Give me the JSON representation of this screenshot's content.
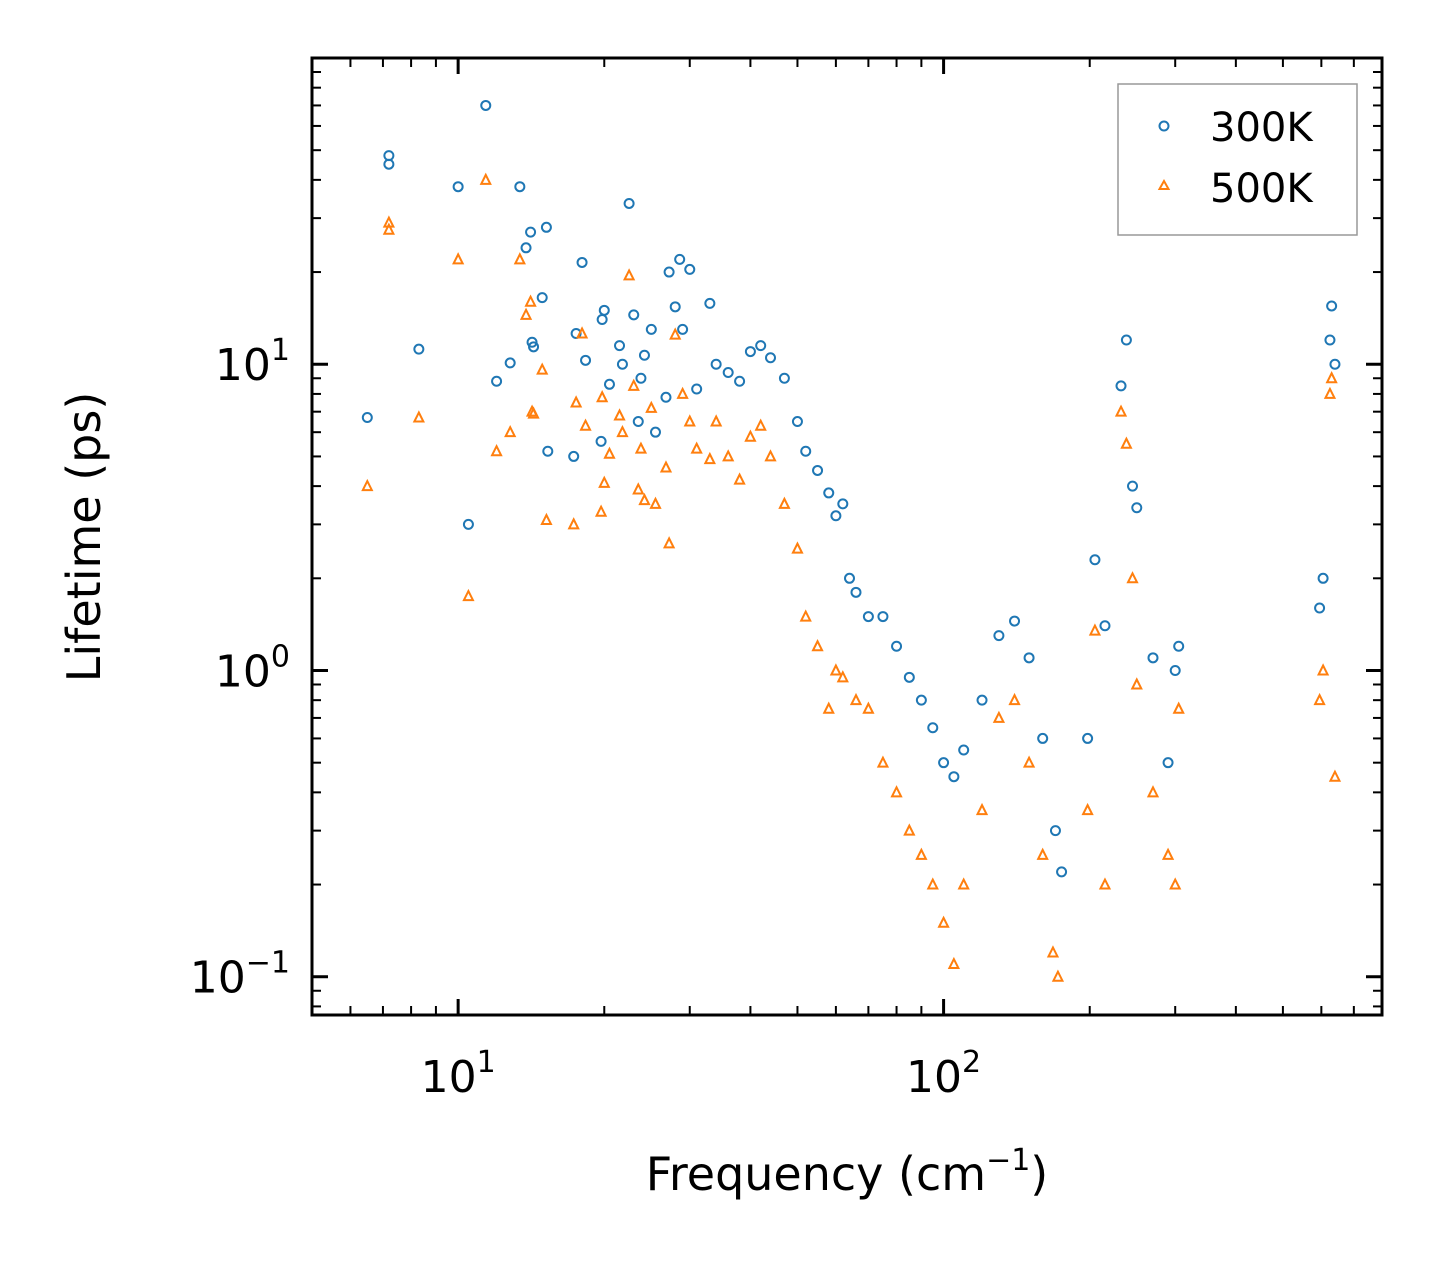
{
  "chart_data": {
    "type": "scatter",
    "xscale": "log",
    "yscale": "log",
    "xlabel": "Frequency (cm",
    "xlabel_sup": "−1",
    "xlabel_end": ")",
    "ylabel": "Lifetime (ps)",
    "xlim": [
      5,
      800
    ],
    "ylim": [
      0.075,
      100
    ],
    "xticks": [
      {
        "value": 10,
        "base": "10",
        "exp": "1"
      },
      {
        "value": 100,
        "base": "10",
        "exp": "2"
      }
    ],
    "yticks": [
      {
        "value": 0.1,
        "base": "10",
        "exp": "−1"
      },
      {
        "value": 1,
        "base": "10",
        "exp": "0"
      },
      {
        "value": 10,
        "base": "10",
        "exp": "1"
      }
    ],
    "legend_position": "top-right",
    "series": [
      {
        "name": "300K",
        "color": "#1f77b4",
        "marker": "circle-open",
        "points": [
          [
            6.5,
            6.7
          ],
          [
            7.2,
            48
          ],
          [
            7.2,
            45
          ],
          [
            8.3,
            11.2
          ],
          [
            10.0,
            38
          ],
          [
            10.5,
            3.0
          ],
          [
            11.4,
            70
          ],
          [
            12.0,
            8.8
          ],
          [
            12.8,
            10.1
          ],
          [
            13.4,
            38
          ],
          [
            13.8,
            24
          ],
          [
            14.1,
            27
          ],
          [
            14.2,
            11.8
          ],
          [
            14.3,
            11.4
          ],
          [
            14.9,
            16.5
          ],
          [
            15.2,
            28
          ],
          [
            15.3,
            5.2
          ],
          [
            17.3,
            5.0
          ],
          [
            17.5,
            12.6
          ],
          [
            18.0,
            21.5
          ],
          [
            18.3,
            10.3
          ],
          [
            19.7,
            5.6
          ],
          [
            19.8,
            14.0
          ],
          [
            20.0,
            15.0
          ],
          [
            20.5,
            8.6
          ],
          [
            21.5,
            11.5
          ],
          [
            21.8,
            10.0
          ],
          [
            22.5,
            33.5
          ],
          [
            23.0,
            14.5
          ],
          [
            23.5,
            6.5
          ],
          [
            23.8,
            9.0
          ],
          [
            24.2,
            10.7
          ],
          [
            25.0,
            13.0
          ],
          [
            25.5,
            6.0
          ],
          [
            26.8,
            7.8
          ],
          [
            27.2,
            20.0
          ],
          [
            28.0,
            15.4
          ],
          [
            28.6,
            22.0
          ],
          [
            29.0,
            13.0
          ],
          [
            30.0,
            20.4
          ],
          [
            31.0,
            8.3
          ],
          [
            33.0,
            15.8
          ],
          [
            34.0,
            10.0
          ],
          [
            36.0,
            9.4
          ],
          [
            38.0,
            8.8
          ],
          [
            40.0,
            11.0
          ],
          [
            42.0,
            11.5
          ],
          [
            44.0,
            10.5
          ],
          [
            47.0,
            9.0
          ],
          [
            50.0,
            6.5
          ],
          [
            52.0,
            5.2
          ],
          [
            55.0,
            4.5
          ],
          [
            58.0,
            3.8
          ],
          [
            60.0,
            3.2
          ],
          [
            62.0,
            3.5
          ],
          [
            64.0,
            2.0
          ],
          [
            66.0,
            1.8
          ],
          [
            70.0,
            1.5
          ],
          [
            75.0,
            1.5
          ],
          [
            80.0,
            1.2
          ],
          [
            85.0,
            0.95
          ],
          [
            90.0,
            0.8
          ],
          [
            95.0,
            0.65
          ],
          [
            100.0,
            0.5
          ],
          [
            105.0,
            0.45
          ],
          [
            110.0,
            0.55
          ],
          [
            120.0,
            0.8
          ],
          [
            130.0,
            1.3
          ],
          [
            140.0,
            1.45
          ],
          [
            150.0,
            1.1
          ],
          [
            160.0,
            0.6
          ],
          [
            170.0,
            0.3
          ],
          [
            175.0,
            0.22
          ],
          [
            198.0,
            0.6
          ],
          [
            205.0,
            2.3
          ],
          [
            215.0,
            1.4
          ],
          [
            232.0,
            8.5
          ],
          [
            238.0,
            12.0
          ],
          [
            245.0,
            4.0
          ],
          [
            250.0,
            3.4
          ],
          [
            270.0,
            1.1
          ],
          [
            300.0,
            1.0
          ],
          [
            305.0,
            1.2
          ],
          [
            290.0,
            0.5
          ],
          [
            595.0,
            1.6
          ],
          [
            605.0,
            2.0
          ],
          [
            625.0,
            12.0
          ],
          [
            630.0,
            15.5
          ],
          [
            640.0,
            10.0
          ]
        ]
      },
      {
        "name": "500K",
        "color": "#ff7f0e",
        "marker": "triangle-open",
        "points": [
          [
            6.5,
            4.0
          ],
          [
            7.2,
            29
          ],
          [
            7.2,
            27.5
          ],
          [
            8.3,
            6.7
          ],
          [
            10.0,
            22
          ],
          [
            10.5,
            1.75
          ],
          [
            11.4,
            40
          ],
          [
            12.0,
            5.2
          ],
          [
            12.8,
            6.0
          ],
          [
            13.4,
            22
          ],
          [
            13.8,
            14.5
          ],
          [
            14.1,
            16.0
          ],
          [
            14.2,
            7.0
          ],
          [
            14.3,
            6.9
          ],
          [
            14.9,
            9.6
          ],
          [
            15.2,
            3.1
          ],
          [
            17.3,
            3.0
          ],
          [
            17.5,
            7.5
          ],
          [
            18.0,
            12.6
          ],
          [
            18.3,
            6.3
          ],
          [
            19.7,
            3.3
          ],
          [
            19.8,
            7.8
          ],
          [
            20.0,
            4.1
          ],
          [
            20.5,
            5.1
          ],
          [
            21.5,
            6.8
          ],
          [
            21.8,
            6.0
          ],
          [
            22.5,
            19.5
          ],
          [
            23.0,
            8.5
          ],
          [
            23.5,
            3.9
          ],
          [
            23.8,
            5.3
          ],
          [
            24.2,
            3.6
          ],
          [
            25.0,
            7.2
          ],
          [
            25.5,
            3.5
          ],
          [
            26.8,
            4.6
          ],
          [
            27.2,
            2.6
          ],
          [
            28.0,
            12.5
          ],
          [
            29.0,
            8.0
          ],
          [
            30.0,
            6.5
          ],
          [
            31.0,
            5.3
          ],
          [
            33.0,
            4.9
          ],
          [
            34.0,
            6.5
          ],
          [
            36.0,
            5.0
          ],
          [
            38.0,
            4.2
          ],
          [
            40.0,
            5.8
          ],
          [
            42.0,
            6.3
          ],
          [
            44.0,
            5.0
          ],
          [
            47.0,
            3.5
          ],
          [
            50.0,
            2.5
          ],
          [
            52.0,
            1.5
          ],
          [
            55.0,
            1.2
          ],
          [
            58.0,
            0.75
          ],
          [
            60.0,
            1.0
          ],
          [
            62.0,
            0.95
          ],
          [
            66.0,
            0.8
          ],
          [
            70.0,
            0.75
          ],
          [
            75.0,
            0.5
          ],
          [
            80.0,
            0.4
          ],
          [
            85.0,
            0.3
          ],
          [
            90.0,
            0.25
          ],
          [
            95.0,
            0.2
          ],
          [
            100.0,
            0.15
          ],
          [
            105.0,
            0.11
          ],
          [
            110.0,
            0.2
          ],
          [
            120.0,
            0.35
          ],
          [
            130.0,
            0.7
          ],
          [
            140.0,
            0.8
          ],
          [
            150.0,
            0.5
          ],
          [
            160.0,
            0.25
          ],
          [
            168.0,
            0.12
          ],
          [
            172.0,
            0.1
          ],
          [
            198.0,
            0.35
          ],
          [
            205.0,
            1.35
          ],
          [
            215.0,
            0.2
          ],
          [
            232.0,
            7.0
          ],
          [
            238.0,
            5.5
          ],
          [
            245.0,
            2.0
          ],
          [
            250.0,
            0.9
          ],
          [
            270.0,
            0.4
          ],
          [
            290.0,
            0.25
          ],
          [
            300.0,
            0.2
          ],
          [
            305.0,
            0.75
          ],
          [
            595.0,
            0.8
          ],
          [
            605.0,
            1.0
          ],
          [
            625.0,
            8.0
          ],
          [
            630.0,
            9.0
          ],
          [
            640.0,
            0.45
          ]
        ]
      }
    ]
  }
}
